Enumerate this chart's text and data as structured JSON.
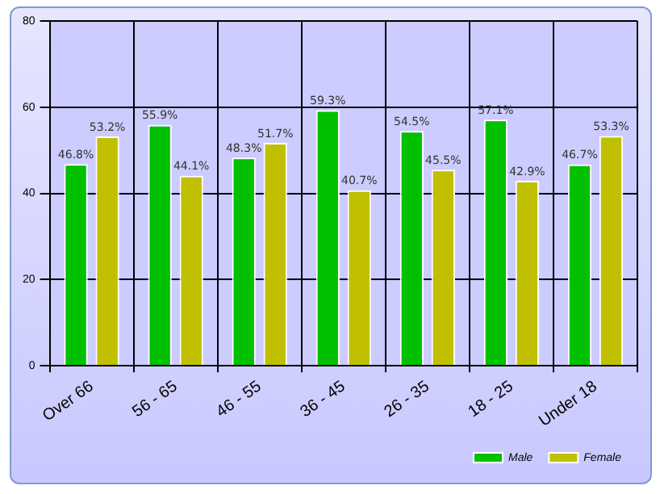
{
  "chart_data": {
    "type": "bar",
    "categories": [
      "Over 66",
      "56 - 65",
      "46 - 55",
      "36 - 45",
      "26 - 35",
      "18 - 25",
      "Under 18"
    ],
    "series": [
      {
        "name": "Male",
        "color": "#00c000",
        "values": [
          46.8,
          55.9,
          48.3,
          59.3,
          54.5,
          57.1,
          46.7
        ],
        "value_labels": [
          "46.8%",
          "55.9%",
          "48.3%",
          "59.3%",
          "54.5%",
          "57.1%",
          "46.7%"
        ]
      },
      {
        "name": "Female",
        "color": "#c0c000",
        "values": [
          53.2,
          44.1,
          51.7,
          40.7,
          45.5,
          42.9,
          53.3
        ],
        "value_labels": [
          "53.2%",
          "44.1%",
          "51.7%",
          "40.7%",
          "45.5%",
          "42.9%",
          "53.3%"
        ]
      }
    ],
    "ylim": [
      0,
      80
    ],
    "yticks": [
      0,
      20,
      40,
      60,
      80
    ],
    "grid": true,
    "legend": "bottom right"
  }
}
